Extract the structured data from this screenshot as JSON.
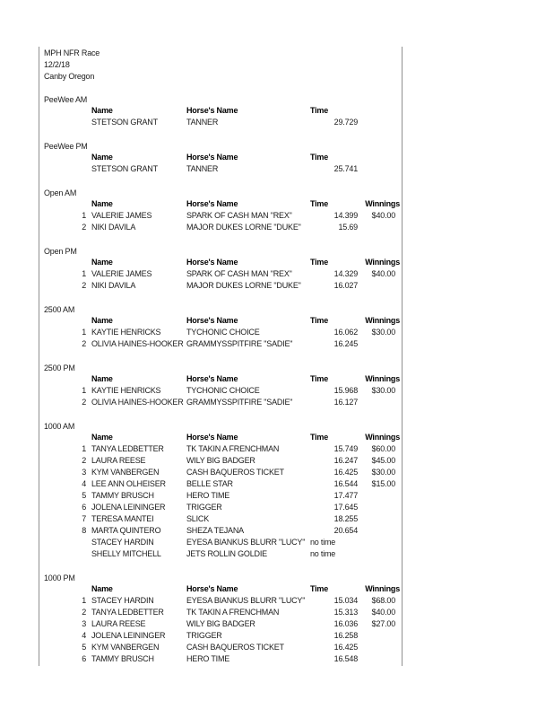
{
  "doc": {
    "title": "MPH NFR Race",
    "date": "12/2/18",
    "location": "Canby Oregon"
  },
  "columns": {
    "name": "Name",
    "horse": "Horse's Name",
    "time": "Time",
    "winnings": "Winnings"
  },
  "colors": {
    "border": "#909090",
    "text": "#1b1b1b",
    "background": "#ffffff"
  },
  "sections": [
    {
      "title": "PeeWee AM",
      "show_winnings": false,
      "rows": [
        {
          "place": "",
          "name": "STETSON GRANT",
          "horse": "TANNER",
          "time": "29.729",
          "winnings": ""
        }
      ]
    },
    {
      "title": "PeeWee PM",
      "show_winnings": false,
      "rows": [
        {
          "place": "",
          "name": "STETSON GRANT",
          "horse": "TANNER",
          "time": "25.741",
          "winnings": ""
        }
      ]
    },
    {
      "title": "Open AM",
      "show_winnings": true,
      "rows": [
        {
          "place": "1",
          "name": "VALERIE JAMES",
          "horse": "SPARK OF CASH MAN \"REX\"",
          "time": "14.399",
          "winnings": "$40.00"
        },
        {
          "place": "2",
          "name": "NIKI DAVILA",
          "horse": "MAJOR DUKES LORNE \"DUKE\"",
          "time": "15.69",
          "winnings": ""
        }
      ]
    },
    {
      "title": "Open PM",
      "show_winnings": true,
      "rows": [
        {
          "place": "1",
          "name": "VALERIE JAMES",
          "horse": "SPARK OF CASH MAN \"REX\"",
          "time": "14.329",
          "winnings": "$40.00"
        },
        {
          "place": "2",
          "name": "NIKI DAVILA",
          "horse": "MAJOR DUKES LORNE \"DUKE\"",
          "time": "16.027",
          "winnings": ""
        }
      ]
    },
    {
      "title": "2500 AM",
      "show_winnings": true,
      "rows": [
        {
          "place": "1",
          "name": "KAYTIE HENRICKS",
          "horse": "TYCHONIC CHOICE",
          "time": "16.062",
          "winnings": "$30.00"
        },
        {
          "place": "2",
          "name": "OLIVIA HAINES-HOOKER",
          "horse": "GRAMMYSSPITFIRE \"SADIE\"",
          "time": "16.245",
          "winnings": ""
        }
      ]
    },
    {
      "title": "2500 PM",
      "show_winnings": true,
      "rows": [
        {
          "place": "1",
          "name": "KAYTIE HENRICKS",
          "horse": "TYCHONIC CHOICE",
          "time": "15.968",
          "winnings": "$30.00"
        },
        {
          "place": "2",
          "name": "OLIVIA HAINES-HOOKER",
          "horse": "GRAMMYSSPITFIRE \"SADIE\"",
          "time": "16.127",
          "winnings": ""
        }
      ]
    },
    {
      "title": "1000 AM",
      "show_winnings": true,
      "rows": [
        {
          "place": "1",
          "name": "TANYA LEDBETTER",
          "horse": "TK TAKIN A FRENCHMAN",
          "time": "15.749",
          "winnings": "$60.00"
        },
        {
          "place": "2",
          "name": "LAURA REESE",
          "horse": "WILY BIG BADGER",
          "time": "16.247",
          "winnings": "$45.00"
        },
        {
          "place": "3",
          "name": "KYM VANBERGEN",
          "horse": "CASH BAQUEROS TICKET",
          "time": "16.425",
          "winnings": "$30.00"
        },
        {
          "place": "4",
          "name": "LEE ANN OLHEISER",
          "horse": "BELLE STAR",
          "time": "16.544",
          "winnings": "$15.00"
        },
        {
          "place": "5",
          "name": "TAMMY BRUSCH",
          "horse": "HERO TIME",
          "time": "17.477",
          "winnings": ""
        },
        {
          "place": "6",
          "name": "JOLENA LEININGER",
          "horse": "TRIGGER",
          "time": "17.645",
          "winnings": ""
        },
        {
          "place": "7",
          "name": "TERESA MANTEI",
          "horse": "SLICK",
          "time": "18.255",
          "winnings": ""
        },
        {
          "place": "8",
          "name": "MARTA QUINTERO",
          "horse": "SHEZA TEJANA",
          "time": "20.654",
          "winnings": ""
        },
        {
          "place": "",
          "name": "STACEY HARDIN",
          "horse": "EYESA BIANKUS BLURR \"LUCY\"",
          "time": "no time",
          "winnings": ""
        },
        {
          "place": "",
          "name": "SHELLY MITCHELL",
          "horse": "JETS ROLLIN GOLDIE",
          "time": "no time",
          "winnings": ""
        }
      ]
    },
    {
      "title": "1000 PM",
      "show_winnings": true,
      "rows": [
        {
          "place": "1",
          "name": "STACEY HARDIN",
          "horse": "EYESA BIANKUS BLURR \"LUCY\"",
          "time": "15.034",
          "winnings": "$68.00"
        },
        {
          "place": "2",
          "name": "TANYA LEDBETTER",
          "horse": "TK TAKIN A FRENCHMAN",
          "time": "15.313",
          "winnings": "$40.00"
        },
        {
          "place": "3",
          "name": "LAURA REESE",
          "horse": "WILY BIG BADGER",
          "time": "16.036",
          "winnings": "$27.00"
        },
        {
          "place": "4",
          "name": "JOLENA LEININGER",
          "horse": "TRIGGER",
          "time": "16.258",
          "winnings": ""
        },
        {
          "place": "5",
          "name": "KYM VANBERGEN",
          "horse": "CASH BAQUEROS TICKET",
          "time": "16.425",
          "winnings": ""
        },
        {
          "place": "6",
          "name": "TAMMY BRUSCH",
          "horse": "HERO TIME",
          "time": "16.548",
          "winnings": ""
        }
      ]
    }
  ]
}
